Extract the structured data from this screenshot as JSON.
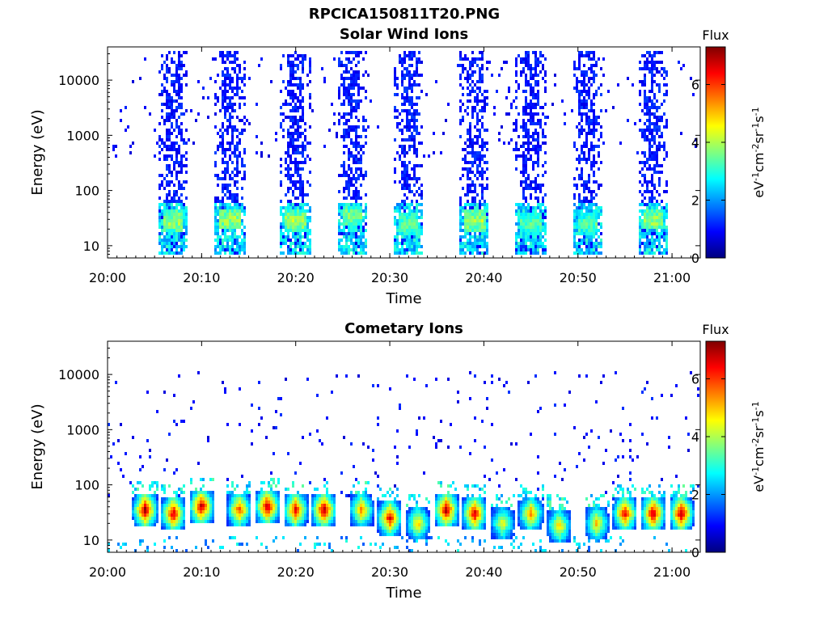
{
  "figure": {
    "title": "RPCICA150811T20.PNG"
  },
  "chart_data": [
    {
      "type": "heatmap",
      "title": "Solar Wind Ions",
      "xlabel": "Time",
      "ylabel": "Energy (eV)",
      "x_ticks": [
        "20:00",
        "20:10",
        "20:20",
        "20:30",
        "20:40",
        "20:50",
        "21:00"
      ],
      "xlim": [
        "20:00",
        "21:03"
      ],
      "y_scale": "log",
      "y_ticks": [
        10,
        100,
        1000,
        10000
      ],
      "ylim": [
        6,
        40000
      ],
      "colorbar": {
        "label": "eV-1cm-2sr-1s-1",
        "title": "Flux",
        "ticks": [
          0,
          2,
          4,
          6
        ],
        "range": [
          0,
          7.3
        ],
        "colormap": "jet"
      },
      "regions": [
        {
          "time": "20:07",
          "description": "burst",
          "energy_range_eV": [
            7,
            35000
          ],
          "peak_energy_eV": 28,
          "peak_flux": 4.5
        },
        {
          "time": "20:13",
          "description": "burst",
          "energy_range_eV": [
            7,
            35000
          ],
          "peak_energy_eV": 30,
          "peak_flux": 4.5
        },
        {
          "time": "20:20",
          "description": "burst",
          "energy_range_eV": [
            7,
            35000
          ],
          "peak_energy_eV": 28,
          "peak_flux": 4.5
        },
        {
          "time": "20:26",
          "description": "burst",
          "energy_range_eV": [
            7,
            35000
          ],
          "peak_energy_eV": 35,
          "peak_flux": 4.2
        },
        {
          "time": "20:32",
          "description": "burst",
          "energy_range_eV": [
            7,
            35000
          ],
          "peak_energy_eV": 25,
          "peak_flux": 4.0
        },
        {
          "time": "20:39",
          "description": "burst",
          "energy_range_eV": [
            7,
            35000
          ],
          "peak_energy_eV": 28,
          "peak_flux": 4.5
        },
        {
          "time": "20:45",
          "description": "burst",
          "energy_range_eV": [
            7,
            35000
          ],
          "peak_energy_eV": 25,
          "peak_flux": 3.8
        },
        {
          "time": "20:51",
          "description": "burst",
          "energy_range_eV": [
            7,
            35000
          ],
          "peak_energy_eV": 25,
          "peak_flux": 3.8
        },
        {
          "time": "20:58",
          "description": "burst",
          "energy_range_eV": [
            7,
            35000
          ],
          "peak_energy_eV": 30,
          "peak_flux": 4.5
        }
      ]
    },
    {
      "type": "heatmap",
      "title": "Cometary Ions",
      "xlabel": "Time",
      "ylabel": "Energy (eV)",
      "x_ticks": [
        "20:00",
        "20:10",
        "20:20",
        "20:30",
        "20:40",
        "20:50",
        "21:00"
      ],
      "xlim": [
        "20:00",
        "21:03"
      ],
      "y_scale": "log",
      "y_ticks": [
        10,
        100,
        1000,
        10000
      ],
      "ylim": [
        6,
        40000
      ],
      "colorbar": {
        "label": "eV-1cm-2sr-1s-1",
        "title": "Flux",
        "ticks": [
          0,
          2,
          4,
          6
        ],
        "range": [
          0,
          7.3
        ],
        "colormap": "jet"
      },
      "regions": [
        {
          "time": "20:04",
          "description": "hot spot",
          "peak_energy_eV": 35,
          "peak_flux": 7.0
        },
        {
          "time": "20:07",
          "description": "hot spot",
          "peak_energy_eV": 30,
          "peak_flux": 6.8
        },
        {
          "time": "20:10",
          "description": "hot spot",
          "peak_energy_eV": 40,
          "peak_flux": 7.0
        },
        {
          "time": "20:14",
          "description": "hot spot",
          "peak_energy_eV": 35,
          "peak_flux": 6.0
        },
        {
          "time": "20:17",
          "description": "hot spot",
          "peak_energy_eV": 40,
          "peak_flux": 7.0
        },
        {
          "time": "20:20",
          "description": "hot spot",
          "peak_energy_eV": 35,
          "peak_flux": 6.5
        },
        {
          "time": "20:23",
          "description": "hot spot",
          "peak_energy_eV": 35,
          "peak_flux": 7.0
        },
        {
          "time": "20:27",
          "description": "hot spot",
          "peak_energy_eV": 35,
          "peak_flux": 5.5
        },
        {
          "time": "20:30",
          "description": "hot spot",
          "peak_energy_eV": 25,
          "peak_flux": 6.5
        },
        {
          "time": "20:33",
          "description": "hot spot",
          "peak_energy_eV": 20,
          "peak_flux": 5.0
        },
        {
          "time": "20:36",
          "description": "hot spot",
          "peak_energy_eV": 35,
          "peak_flux": 7.0
        },
        {
          "time": "20:39",
          "description": "hot spot",
          "peak_energy_eV": 30,
          "peak_flux": 6.8
        },
        {
          "time": "20:42",
          "description": "hot spot",
          "peak_energy_eV": 20,
          "peak_flux": 4.5
        },
        {
          "time": "20:45",
          "description": "hot spot",
          "peak_energy_eV": 30,
          "peak_flux": 5.5
        },
        {
          "time": "20:48",
          "description": "hot spot",
          "peak_energy_eV": 18,
          "peak_flux": 5.0
        },
        {
          "time": "20:52",
          "description": "hot spot",
          "peak_energy_eV": 20,
          "peak_flux": 5.0
        },
        {
          "time": "20:55",
          "description": "hot spot",
          "peak_energy_eV": 30,
          "peak_flux": 6.5
        },
        {
          "time": "20:58",
          "description": "hot spot",
          "peak_energy_eV": 30,
          "peak_flux": 7.0
        },
        {
          "time": "21:01",
          "description": "hot spot",
          "peak_energy_eV": 30,
          "peak_flux": 7.0
        }
      ]
    }
  ]
}
